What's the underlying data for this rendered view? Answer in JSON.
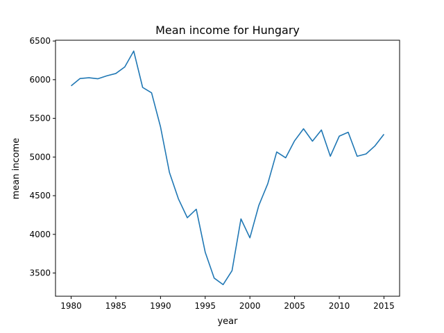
{
  "chart_data": {
    "type": "line",
    "title": "Mean income for Hungary",
    "xlabel": "year",
    "ylabel": "mean income",
    "xlim": [
      1978.25,
      2016.75
    ],
    "ylim": [
      3200,
      6510
    ],
    "xticks": [
      1980,
      1985,
      1990,
      1995,
      2000,
      2005,
      2010,
      2015
    ],
    "yticks": [
      3500,
      4000,
      4500,
      5000,
      5500,
      6000,
      6500
    ],
    "grid": false,
    "line_color": "#1f77b4",
    "series": [
      {
        "x": [
          1980,
          1981,
          1982,
          1983,
          1984,
          1985,
          1986,
          1987,
          1988,
          1989,
          1990,
          1991,
          1992,
          1993,
          1994,
          1995,
          1996,
          1997,
          1998,
          1999,
          2000,
          2001,
          2002,
          2003,
          2004,
          2005,
          2006,
          2007,
          2008,
          2009,
          2010,
          2011,
          2012,
          2013,
          2014,
          2015
        ],
        "values": [
          5920,
          6015,
          6025,
          6012,
          6050,
          6080,
          6165,
          6370,
          5900,
          5830,
          5390,
          4800,
          4460,
          4215,
          4325,
          3770,
          3435,
          3350,
          3530,
          4200,
          3955,
          4375,
          4655,
          5065,
          4990,
          5210,
          5365,
          5205,
          5350,
          5010,
          5270,
          5320,
          5010,
          5040,
          5145,
          5295
        ]
      }
    ]
  }
}
